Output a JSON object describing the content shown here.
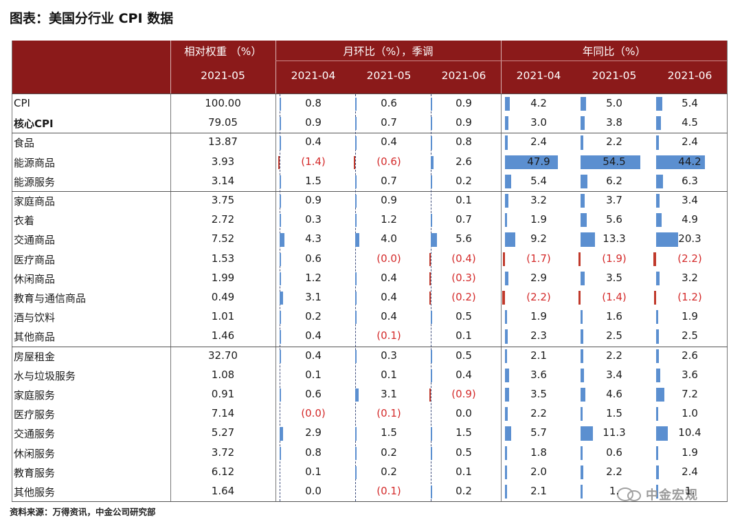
{
  "title": "图表：美国分行业 CPI 数据",
  "header": {
    "weight_group": "相对权重 （%）",
    "mom_group": "月环比（%），季调",
    "yoy_group": "年同比（%）",
    "weight_period": "2021-05",
    "mom_periods": [
      "2021-04",
      "2021-05",
      "2021-06"
    ],
    "yoy_periods": [
      "2021-04",
      "2021-05",
      "2021-06"
    ]
  },
  "rows": [
    {
      "name": "CPI",
      "weight": "100.00",
      "mom": [
        "0.8",
        "0.6",
        "0.9"
      ],
      "yoy": [
        "4.2",
        "5.0",
        "5.4"
      ]
    },
    {
      "name": "核心CPI",
      "weight": "79.05",
      "mom": [
        "0.9",
        "0.7",
        "0.9"
      ],
      "yoy": [
        "3.0",
        "3.8",
        "4.5"
      ]
    },
    {
      "name": "食品",
      "weight": "13.87",
      "mom": [
        "0.4",
        "0.4",
        "0.8"
      ],
      "yoy": [
        "2.4",
        "2.2",
        "2.4"
      ]
    },
    {
      "name": "能源商品",
      "weight": "3.93",
      "mom": [
        "(1.4)",
        "(0.6)",
        "2.6"
      ],
      "yoy": [
        "47.9",
        "54.5",
        "44.2"
      ]
    },
    {
      "name": "能源服务",
      "weight": "3.14",
      "mom": [
        "1.5",
        "0.7",
        "0.2"
      ],
      "yoy": [
        "5.4",
        "6.2",
        "6.3"
      ]
    },
    {
      "name": "家庭商品",
      "weight": "3.75",
      "mom": [
        "0.9",
        "0.9",
        "0.1"
      ],
      "yoy": [
        "3.2",
        "3.7",
        "3.4"
      ]
    },
    {
      "name": "衣着",
      "weight": "2.72",
      "mom": [
        "0.3",
        "1.2",
        "0.7"
      ],
      "yoy": [
        "1.9",
        "5.6",
        "4.9"
      ]
    },
    {
      "name": "交通商品",
      "weight": "7.52",
      "mom": [
        "4.3",
        "4.0",
        "5.6"
      ],
      "yoy": [
        "9.2",
        "13.3",
        "20.3"
      ]
    },
    {
      "name": "医疗商品",
      "weight": "1.53",
      "mom": [
        "0.6",
        "(0.0)",
        "(0.4)"
      ],
      "yoy": [
        "(1.7)",
        "(1.9)",
        "(2.2)"
      ]
    },
    {
      "name": "休闲商品",
      "weight": "1.99",
      "mom": [
        "1.2",
        "0.4",
        "(0.3)"
      ],
      "yoy": [
        "2.9",
        "3.5",
        "3.2"
      ]
    },
    {
      "name": "教育与通信商品",
      "weight": "0.49",
      "mom": [
        "3.1",
        "0.4",
        "(0.2)"
      ],
      "yoy": [
        "(2.2)",
        "(1.4)",
        "(1.2)"
      ]
    },
    {
      "name": "酒与饮料",
      "weight": "1.01",
      "mom": [
        "0.2",
        "0.4",
        "0.5"
      ],
      "yoy": [
        "1.9",
        "1.6",
        "1.9"
      ]
    },
    {
      "name": "其他商品",
      "weight": "1.46",
      "mom": [
        "0.4",
        "(0.1)",
        "0.1"
      ],
      "yoy": [
        "2.3",
        "2.5",
        "2.5"
      ]
    },
    {
      "name": "房屋租金",
      "weight": "32.70",
      "mom": [
        "0.4",
        "0.3",
        "0.5"
      ],
      "yoy": [
        "2.1",
        "2.2",
        "2.6"
      ]
    },
    {
      "name": "水与垃圾服务",
      "weight": "1.08",
      "mom": [
        "0.1",
        "0.1",
        "0.4"
      ],
      "yoy": [
        "3.6",
        "3.4",
        "3.6"
      ]
    },
    {
      "name": "家庭服务",
      "weight": "0.91",
      "mom": [
        "0.6",
        "3.1",
        "(0.9)"
      ],
      "yoy": [
        "3.5",
        "4.6",
        "7.2"
      ]
    },
    {
      "name": "医疗服务",
      "weight": "7.14",
      "mom": [
        "(0.0)",
        "(0.1)",
        "0.0"
      ],
      "yoy": [
        "2.2",
        "1.5",
        "1.0"
      ]
    },
    {
      "name": "交通服务",
      "weight": "5.27",
      "mom": [
        "2.9",
        "1.5",
        "1.5"
      ],
      "yoy": [
        "5.7",
        "11.3",
        "10.4"
      ]
    },
    {
      "name": "休闲服务",
      "weight": "3.72",
      "mom": [
        "0.8",
        "0.2",
        "0.5"
      ],
      "yoy": [
        "1.8",
        "0.6",
        "1.9"
      ]
    },
    {
      "name": "教育服务",
      "weight": "6.12",
      "mom": [
        "0.1",
        "0.2",
        "0.1"
      ],
      "yoy": [
        "2.0",
        "2.2",
        "2.4"
      ]
    },
    {
      "name": "其他服务",
      "weight": "1.64",
      "mom": [
        "0.0",
        "(0.1)",
        "0.2"
      ],
      "yoy": [
        "2.1",
        "1.",
        "1."
      ]
    }
  ],
  "bold_rows": [
    1
  ],
  "footer": "资料来源：万得资讯，中金公司研究部",
  "watermark": "中金宏观",
  "colors": {
    "header_bg": "#8b1a1a",
    "positive_bar": "#5b8fd0",
    "negative_bar": "#c0392b",
    "negative_text": "#d42a2a"
  }
}
